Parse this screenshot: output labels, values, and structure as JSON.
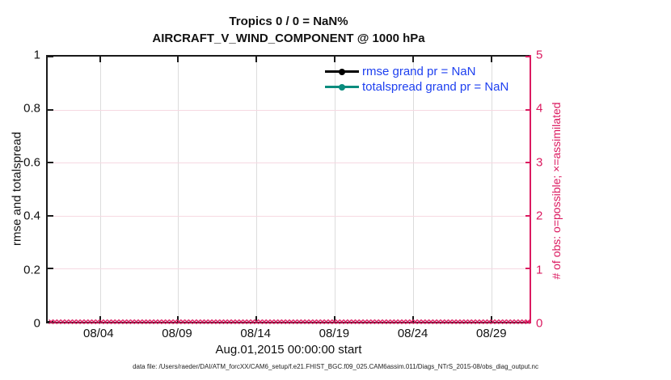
{
  "titles": {
    "line1": "Tropics 0 / 0 = NaN%",
    "line2": "AIRCRAFT_V_WIND_COMPONENT @ 1000 hPa"
  },
  "legend": {
    "text_color": "#1e40f0",
    "items": [
      {
        "label": "rmse grand pr = NaN",
        "color": "#000000"
      },
      {
        "label": "totalspread grand pr = NaN",
        "color": "#0a8c7e"
      }
    ]
  },
  "axes": {
    "left": {
      "label": "rmse and totalspread",
      "color": "#111111",
      "tick_labels": [
        "1",
        "0.8",
        "0.6",
        "0.4",
        "0.2",
        "0"
      ],
      "tick_top_pct": [
        0,
        20,
        40,
        60,
        80,
        100
      ]
    },
    "right": {
      "label": "# of obs: o=possible; ×=assimilated",
      "color": "#db1a60",
      "tick_labels": [
        "5",
        "4",
        "3",
        "2",
        "1",
        "0"
      ],
      "tick_top_pct": [
        0,
        20,
        40,
        60,
        80,
        100
      ]
    },
    "x": {
      "label": "Aug.01,2015 00:00:00 start",
      "tick_labels": [
        "08/04",
        "08/09",
        "08/14",
        "08/19",
        "08/24",
        "08/29"
      ],
      "tick_left_pct": [
        10.8,
        27.0,
        43.2,
        59.4,
        75.6,
        91.8
      ]
    }
  },
  "footer": {
    "data_file": "data file: /Users/raeder/DAI/ATM_forcXX/CAM6_setup/f.e21.FHIST_BGC.f09_025.CAM6assim.011/Diags_NTrS_2015-08/obs_diag_output.nc"
  },
  "colors": {
    "accent_pink": "#db1a60",
    "grid_vertical": "#dcdcdc",
    "grid_horizontal": "#f6d9e2",
    "axis_black": "#1a1a1a"
  },
  "chart_data": {
    "type": "line",
    "title": "Tropics 0 / 0 = NaN%",
    "subtitle": "AIRCRAFT_V_WIND_COMPONENT @ 1000 hPa",
    "xlabel": "Aug.01,2015 00:00:00 start",
    "ylabel_left": "rmse and totalspread",
    "ylabel_right": "# of obs: o=possible; ×=assimilated",
    "ylim_left": [
      0,
      1
    ],
    "ylim_right": [
      0,
      5
    ],
    "x_range": [
      "2015-08-01 00:00:00",
      "2015-08-31"
    ],
    "x_ticks": [
      "08/04",
      "08/09",
      "08/14",
      "08/19",
      "08/24",
      "08/29"
    ],
    "grid": true,
    "legend_position": "upper right inside",
    "series": [
      {
        "name": "rmse grand pr = NaN",
        "color": "#000000",
        "marker": "circle",
        "values": "NaN (no curve plotted)"
      },
      {
        "name": "totalspread grand pr = NaN",
        "color": "#0a8c7e",
        "marker": "circle",
        "values": "NaN (no curve plotted)"
      },
      {
        "name": "obs assimilated",
        "axis": "right",
        "marker": "×",
        "color": "#db1a60",
        "value_at_all_times": 0,
        "count": 124,
        "note": "dense band of × markers at y=0 spanning the full time axis"
      }
    ]
  },
  "marker_band": {
    "count": 124,
    "start_pct": 0.7,
    "end_pct": 99.3
  }
}
